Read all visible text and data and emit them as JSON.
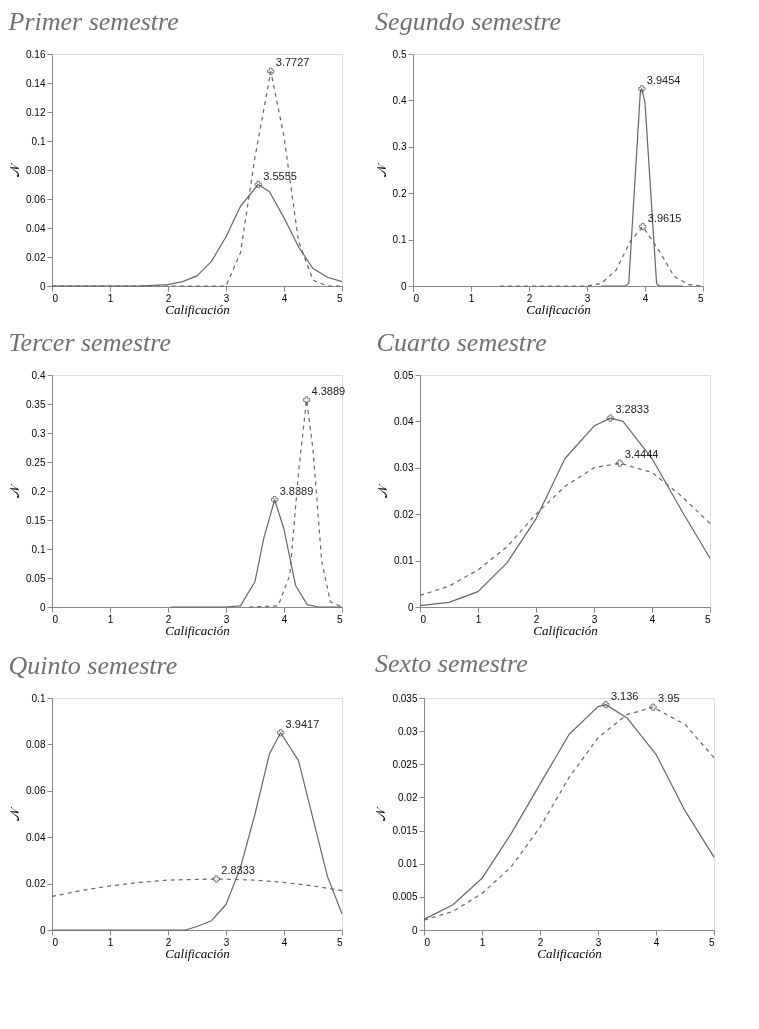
{
  "chart_data": [
    {
      "type": "line",
      "title": "Primer semestre",
      "xlabel": "Calificación",
      "ylabel": "𝒩",
      "xlim": [
        0,
        5
      ],
      "xticks": [
        0,
        1,
        2,
        3,
        4,
        5
      ],
      "ylim": [
        0,
        0.16
      ],
      "yticks": [
        0,
        0.02,
        0.04,
        0.06,
        0.08,
        0.1,
        0.12,
        0.14,
        0.16
      ],
      "grid": false,
      "series": [
        {
          "color": "#666666",
          "line_style": "solid",
          "x": [
            0,
            1,
            1.5,
            2,
            2.25,
            2.5,
            2.75,
            3,
            3.25,
            3.5555,
            3.75,
            4,
            4.25,
            4.5,
            4.75,
            5
          ],
          "values": [
            0,
            0,
            0,
            0.001,
            0.003,
            0.007,
            0.017,
            0.034,
            0.055,
            0.07,
            0.065,
            0.047,
            0.027,
            0.012,
            0.006,
            0.003
          ]
        },
        {
          "color": "#666666",
          "line_style": "dashed",
          "x": [
            0,
            1,
            2,
            3,
            3.25,
            3.5,
            3.7727,
            4,
            4.25,
            4.5,
            4.75,
            5
          ],
          "values": [
            0,
            0,
            0,
            0,
            0.023,
            0.089,
            0.148,
            0.103,
            0.031,
            0.004,
            0,
            0
          ]
        }
      ],
      "annotations": [
        {
          "text": "3.7727",
          "x": 3.7727,
          "y": 0.148
        },
        {
          "text": "3.5555",
          "x": 3.5555,
          "y": 0.07
        }
      ]
    },
    {
      "type": "line",
      "title": "Segundo semestre",
      "xlabel": "Calificación",
      "ylabel": "𝒩",
      "xlim": [
        0,
        5
      ],
      "xticks": [
        0,
        1,
        2,
        3,
        4,
        5
      ],
      "ylim": [
        0,
        0.5
      ],
      "yticks": [
        0,
        0.1,
        0.2,
        0.3,
        0.4,
        0.5
      ],
      "grid": false,
      "series": [
        {
          "color": "#666666",
          "line_style": "solid",
          "x": [
            3.25,
            3.65,
            3.72,
            3.92,
            3.9454,
            4.0,
            4.2,
            4.25,
            4.65
          ],
          "values": [
            0,
            0,
            0.005,
            0.42,
            0.425,
            0.395,
            0.005,
            0,
            0
          ]
        },
        {
          "color": "#666666",
          "line_style": "dashed",
          "x": [
            1.5,
            3,
            3.25,
            3.5,
            3.75,
            3.9615,
            4.25,
            4.5,
            4.75,
            5
          ],
          "values": [
            0,
            0,
            0.006,
            0.034,
            0.097,
            0.128,
            0.075,
            0.021,
            0.003,
            0
          ]
        }
      ],
      "annotations": [
        {
          "text": "3.9454",
          "x": 3.9454,
          "y": 0.425
        },
        {
          "text": "3.9615",
          "x": 3.9615,
          "y": 0.128
        }
      ]
    },
    {
      "type": "line",
      "title": "Tercer  semestre",
      "xlabel": "Calificación",
      "ylabel": "𝒩",
      "xlim": [
        0,
        5
      ],
      "xticks": [
        0,
        1,
        2,
        3,
        4,
        5
      ],
      "ylim": [
        0,
        0.4
      ],
      "yticks": [
        0,
        0.05,
        0.1,
        0.15,
        0.2,
        0.25,
        0.3,
        0.35,
        0.4
      ],
      "grid": false,
      "series": [
        {
          "color": "#666666",
          "line_style": "solid",
          "x": [
            2.05,
            3,
            3.25,
            3.5,
            3.65,
            3.8389,
            4,
            4.2,
            4.4,
            4.6,
            5
          ],
          "values": [
            0,
            0,
            0.002,
            0.044,
            0.118,
            0.185,
            0.134,
            0.037,
            0.004,
            0,
            0
          ]
        },
        {
          "color": "#666666",
          "line_style": "dashed",
          "x": [
            3.4,
            3.9,
            4.1,
            4.25,
            4.3889,
            4.5,
            4.65,
            4.8,
            5
          ],
          "values": [
            0,
            0.002,
            0.055,
            0.232,
            0.357,
            0.272,
            0.079,
            0.009,
            0
          ]
        }
      ],
      "annotations": [
        {
          "text": "4.3889",
          "x": 4.3889,
          "y": 0.357
        },
        {
          "text": "3.8389",
          "x": 3.8389,
          "y": 0.185
        }
      ]
    },
    {
      "type": "line",
      "title": "Cuarto  semestre",
      "xlabel": "Calificación",
      "ylabel": "𝒩",
      "xlim": [
        0,
        5
      ],
      "xticks": [
        0,
        1,
        2,
        3,
        4,
        5
      ],
      "ylim": [
        0,
        0.05
      ],
      "yticks": [
        0,
        0.01,
        0.02,
        0.03,
        0.04,
        0.05
      ],
      "grid": false,
      "series": [
        {
          "color": "#666666",
          "line_style": "solid",
          "x": [
            0,
            0.5,
            1,
            1.5,
            2,
            2.5,
            3,
            3.2833,
            3.5,
            4,
            4.5,
            5
          ],
          "values": [
            0.0003,
            0.001,
            0.0033,
            0.0095,
            0.019,
            0.032,
            0.039,
            0.0407,
            0.04,
            0.032,
            0.021,
            0.0105
          ]
        },
        {
          "color": "#666666",
          "line_style": "dashed",
          "x": [
            0,
            0.5,
            1,
            1.5,
            2,
            2.5,
            3,
            3.4444,
            4,
            4.5,
            5
          ],
          "values": [
            0.0025,
            0.0045,
            0.008,
            0.013,
            0.02,
            0.026,
            0.03,
            0.031,
            0.029,
            0.024,
            0.018
          ]
        }
      ],
      "annotations": [
        {
          "text": "3.2833",
          "x": 3.2833,
          "y": 0.0407
        },
        {
          "text": "3.4444",
          "x": 3.4444,
          "y": 0.031
        }
      ]
    },
    {
      "type": "line",
      "title": "Quinto semestre",
      "xlabel": "Calificación",
      "ylabel": "𝒩",
      "xlim": [
        0,
        5
      ],
      "xticks": [
        0,
        1,
        2,
        3,
        4,
        5
      ],
      "ylim": [
        0,
        0.1
      ],
      "yticks": [
        0,
        0.02,
        0.04,
        0.06,
        0.08,
        0.1
      ],
      "grid": false,
      "series": [
        {
          "color": "#666666",
          "line_style": "solid",
          "x": [
            0,
            1,
            2,
            2.3,
            2.5,
            2.75,
            3,
            3.25,
            3.5,
            3.75,
            3.9417,
            4.25,
            4.5,
            4.75,
            5
          ],
          "values": [
            0,
            0,
            0,
            0,
            0.0015,
            0.004,
            0.011,
            0.027,
            0.05,
            0.076,
            0.085,
            0.073,
            0.048,
            0.023,
            0.007
          ]
        },
        {
          "color": "#666666",
          "line_style": "dashed",
          "x": [
            0,
            0.5,
            1,
            1.5,
            2,
            2.8333,
            3.5,
            4,
            4.5,
            5
          ],
          "values": [
            0.0145,
            0.017,
            0.019,
            0.0205,
            0.0215,
            0.022,
            0.0215,
            0.0205,
            0.019,
            0.017
          ]
        }
      ],
      "annotations": [
        {
          "text": "3.9417",
          "x": 3.9417,
          "y": 0.085
        },
        {
          "text": "2.8333",
          "x": 2.8333,
          "y": 0.022
        }
      ]
    },
    {
      "type": "line",
      "title": "Sexto semestre",
      "xlabel": "Calificación",
      "ylabel": "𝒩",
      "xlim": [
        0,
        5
      ],
      "xticks": [
        0,
        1,
        2,
        3,
        4,
        5
      ],
      "ylim": [
        0,
        0.035
      ],
      "yticks": [
        0,
        0.005,
        0.01,
        0.015,
        0.02,
        0.025,
        0.03,
        0.035
      ],
      "grid": false,
      "series": [
        {
          "color": "#666666",
          "line_style": "solid",
          "x": [
            0,
            0.5,
            1,
            1.5,
            2,
            2.5,
            3,
            3.136,
            3.5,
            4,
            4.5,
            5
          ],
          "values": [
            0.0016,
            0.0038,
            0.0078,
            0.0145,
            0.022,
            0.0295,
            0.0337,
            0.034,
            0.032,
            0.0265,
            0.018,
            0.011
          ]
        },
        {
          "color": "#666666",
          "line_style": "dashed",
          "x": [
            0,
            0.5,
            1,
            1.5,
            2,
            2.5,
            3,
            3.5,
            3.95,
            4.5,
            5
          ],
          "values": [
            0.0015,
            0.0028,
            0.0055,
            0.0095,
            0.0155,
            0.023,
            0.029,
            0.0325,
            0.0336,
            0.031,
            0.026
          ]
        }
      ],
      "annotations": [
        {
          "text": "3.136",
          "x": 3.136,
          "y": 0.034
        },
        {
          "text": "3.95",
          "x": 3.95,
          "y": 0.0336
        }
      ]
    }
  ]
}
